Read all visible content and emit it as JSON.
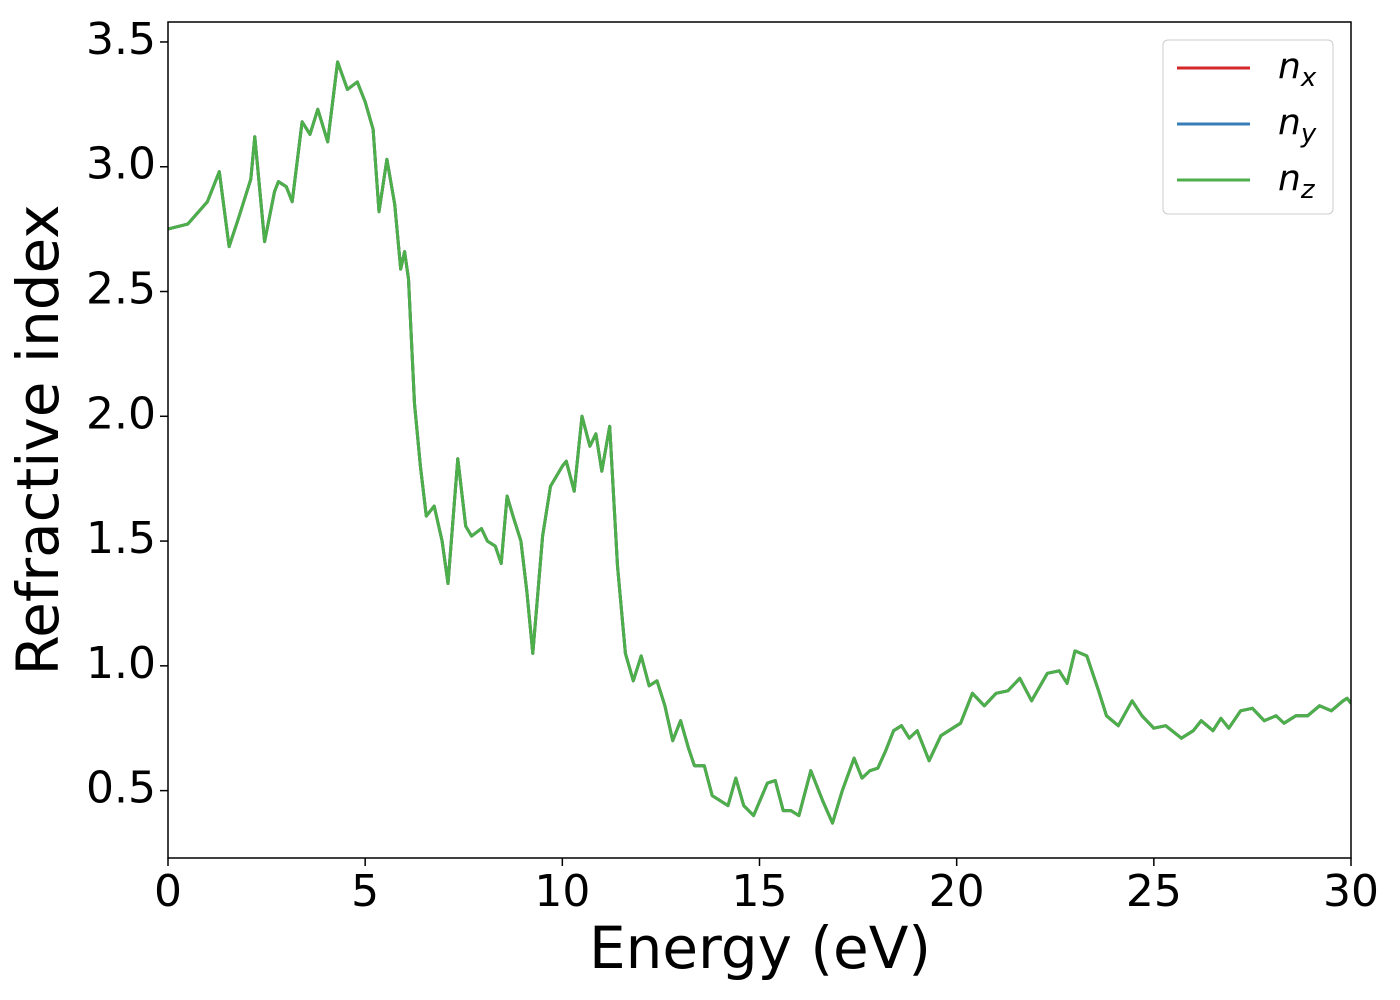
{
  "chart_data": {
    "type": "line",
    "x_label": "Energy (eV)",
    "y_label": "Refractive index",
    "x": [
      0,
      0.5,
      1.0,
      1.3,
      1.55,
      1.8,
      2.1,
      2.2,
      2.45,
      2.7,
      2.8,
      3.0,
      3.15,
      3.4,
      3.6,
      3.8,
      4.05,
      4.3,
      4.55,
      4.8,
      5.0,
      5.2,
      5.35,
      5.55,
      5.75,
      5.9,
      6.0,
      6.1,
      6.25,
      6.4,
      6.55,
      6.75,
      6.95,
      7.1,
      7.35,
      7.55,
      7.7,
      7.95,
      8.1,
      8.3,
      8.45,
      8.6,
      8.75,
      8.95,
      9.1,
      9.25,
      9.5,
      9.7,
      10.0,
      10.1,
      10.3,
      10.5,
      10.7,
      10.85,
      11.0,
      11.2,
      11.4,
      11.6,
      11.8,
      12.0,
      12.2,
      12.4,
      12.6,
      12.8,
      13.0,
      13.2,
      13.35,
      13.6,
      13.8,
      14.0,
      14.2,
      14.4,
      14.6,
      14.85,
      15.2,
      15.4,
      15.6,
      15.8,
      16.0,
      16.3,
      16.6,
      16.85,
      17.1,
      17.4,
      17.6,
      17.8,
      18.0,
      18.2,
      18.4,
      18.6,
      18.8,
      19.0,
      19.3,
      19.6,
      19.9,
      20.1,
      20.4,
      20.7,
      21.0,
      21.3,
      21.6,
      21.9,
      22.3,
      22.6,
      22.8,
      23.0,
      23.3,
      23.6,
      23.8,
      24.1,
      24.45,
      24.7,
      25.0,
      25.3,
      25.7,
      26.0,
      26.2,
      26.5,
      26.7,
      26.9,
      27.2,
      27.5,
      27.8,
      28.1,
      28.3,
      28.6,
      28.9,
      29.2,
      29.5,
      29.8,
      29.9,
      30.0
    ],
    "series": [
      {
        "name": "nx",
        "color": "#d62728",
        "values": [
          2.75,
          2.77,
          2.86,
          2.98,
          2.68,
          2.8,
          2.95,
          3.12,
          2.7,
          2.9,
          2.94,
          2.92,
          2.86,
          3.18,
          3.13,
          3.23,
          3.1,
          3.42,
          3.31,
          3.34,
          3.26,
          3.15,
          2.82,
          3.03,
          2.85,
          2.59,
          2.66,
          2.55,
          2.05,
          1.8,
          1.6,
          1.64,
          1.5,
          1.33,
          1.83,
          1.56,
          1.52,
          1.55,
          1.5,
          1.48,
          1.41,
          1.68,
          1.6,
          1.5,
          1.3,
          1.05,
          1.52,
          1.72,
          1.8,
          1.82,
          1.7,
          2.0,
          1.88,
          1.93,
          1.78,
          1.96,
          1.4,
          1.05,
          0.94,
          1.04,
          0.92,
          0.94,
          0.84,
          0.7,
          0.78,
          0.67,
          0.6,
          0.6,
          0.48,
          0.46,
          0.44,
          0.55,
          0.44,
          0.4,
          0.53,
          0.54,
          0.42,
          0.42,
          0.4,
          0.58,
          0.46,
          0.37,
          0.5,
          0.63,
          0.55,
          0.58,
          0.59,
          0.66,
          0.74,
          0.76,
          0.71,
          0.74,
          0.62,
          0.72,
          0.75,
          0.77,
          0.89,
          0.84,
          0.89,
          0.9,
          0.95,
          0.86,
          0.97,
          0.98,
          0.93,
          1.06,
          1.04,
          0.9,
          0.8,
          0.76,
          0.86,
          0.8,
          0.75,
          0.76,
          0.71,
          0.74,
          0.78,
          0.74,
          0.79,
          0.75,
          0.82,
          0.83,
          0.78,
          0.8,
          0.77,
          0.8,
          0.8,
          0.84,
          0.82,
          0.86,
          0.87,
          0.85
        ]
      },
      {
        "name": "ny",
        "color": "#377eb8",
        "values": [
          2.75,
          2.77,
          2.86,
          2.98,
          2.68,
          2.8,
          2.95,
          3.12,
          2.7,
          2.9,
          2.94,
          2.92,
          2.86,
          3.18,
          3.13,
          3.23,
          3.1,
          3.42,
          3.31,
          3.34,
          3.26,
          3.15,
          2.82,
          3.03,
          2.85,
          2.59,
          2.66,
          2.55,
          2.05,
          1.8,
          1.6,
          1.64,
          1.5,
          1.33,
          1.83,
          1.56,
          1.52,
          1.55,
          1.5,
          1.48,
          1.41,
          1.68,
          1.6,
          1.5,
          1.3,
          1.05,
          1.52,
          1.72,
          1.8,
          1.82,
          1.7,
          2.0,
          1.88,
          1.93,
          1.78,
          1.96,
          1.4,
          1.05,
          0.94,
          1.04,
          0.92,
          0.94,
          0.84,
          0.7,
          0.78,
          0.67,
          0.6,
          0.6,
          0.48,
          0.46,
          0.44,
          0.55,
          0.44,
          0.4,
          0.53,
          0.54,
          0.42,
          0.42,
          0.4,
          0.58,
          0.46,
          0.37,
          0.5,
          0.63,
          0.55,
          0.58,
          0.59,
          0.66,
          0.74,
          0.76,
          0.71,
          0.74,
          0.62,
          0.72,
          0.75,
          0.77,
          0.89,
          0.84,
          0.89,
          0.9,
          0.95,
          0.86,
          0.97,
          0.98,
          0.93,
          1.06,
          1.04,
          0.9,
          0.8,
          0.76,
          0.86,
          0.8,
          0.75,
          0.76,
          0.71,
          0.74,
          0.78,
          0.74,
          0.79,
          0.75,
          0.82,
          0.83,
          0.78,
          0.8,
          0.77,
          0.8,
          0.8,
          0.84,
          0.82,
          0.86,
          0.87,
          0.85
        ]
      },
      {
        "name": "nz",
        "color": "#4daf4a",
        "values": [
          2.75,
          2.77,
          2.86,
          2.98,
          2.68,
          2.8,
          2.95,
          3.12,
          2.7,
          2.9,
          2.94,
          2.92,
          2.86,
          3.18,
          3.13,
          3.23,
          3.1,
          3.42,
          3.31,
          3.34,
          3.26,
          3.15,
          2.82,
          3.03,
          2.85,
          2.59,
          2.66,
          2.55,
          2.05,
          1.8,
          1.6,
          1.64,
          1.5,
          1.33,
          1.83,
          1.56,
          1.52,
          1.55,
          1.5,
          1.48,
          1.41,
          1.68,
          1.6,
          1.5,
          1.3,
          1.05,
          1.52,
          1.72,
          1.8,
          1.82,
          1.7,
          2.0,
          1.88,
          1.93,
          1.78,
          1.96,
          1.4,
          1.05,
          0.94,
          1.04,
          0.92,
          0.94,
          0.84,
          0.7,
          0.78,
          0.67,
          0.6,
          0.6,
          0.48,
          0.46,
          0.44,
          0.55,
          0.44,
          0.4,
          0.53,
          0.54,
          0.42,
          0.42,
          0.4,
          0.58,
          0.46,
          0.37,
          0.5,
          0.63,
          0.55,
          0.58,
          0.59,
          0.66,
          0.74,
          0.76,
          0.71,
          0.74,
          0.62,
          0.72,
          0.75,
          0.77,
          0.89,
          0.84,
          0.89,
          0.9,
          0.95,
          0.86,
          0.97,
          0.98,
          0.93,
          1.06,
          1.04,
          0.9,
          0.8,
          0.76,
          0.86,
          0.8,
          0.75,
          0.76,
          0.71,
          0.74,
          0.78,
          0.74,
          0.79,
          0.75,
          0.82,
          0.83,
          0.78,
          0.8,
          0.77,
          0.8,
          0.8,
          0.84,
          0.82,
          0.86,
          0.87,
          0.85
        ]
      }
    ],
    "xlim": [
      0,
      30
    ],
    "xticks": [
      0,
      5,
      10,
      15,
      20,
      25,
      30
    ],
    "ylim": [
      0.23,
      3.58
    ],
    "yticks": [
      0.5,
      {
        "value": 1,
        "label": "1.0"
      },
      1.5,
      {
        "value": 2,
        "label": "2.0"
      },
      2.5,
      {
        "value": 3,
        "label": "3.0"
      },
      3.5
    ],
    "grid": false,
    "legend": "upper right"
  }
}
